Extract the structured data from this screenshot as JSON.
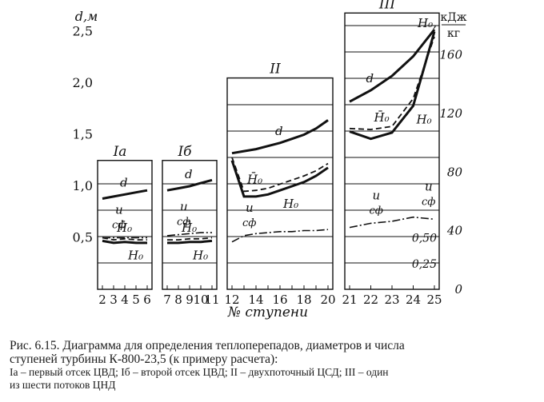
{
  "chart_data": {
    "type": "line",
    "left_axis": {
      "label": "d,м",
      "ticks": [
        {
          "v": 0.5,
          "label": "0,5"
        },
        {
          "v": 1.0,
          "label": "1,0"
        },
        {
          "v": 1.5,
          "label": "1,5"
        },
        {
          "v": 2.0,
          "label": "2,0"
        },
        {
          "v": 2.5,
          "label": "2,5"
        }
      ],
      "ylim": [
        0,
        2.7
      ]
    },
    "right_axis": {
      "label_symbol": "H₀,",
      "label_unit_top": "кДж",
      "label_unit_bottom": "кг",
      "ticks": [
        {
          "v": 0,
          "label": "0"
        },
        {
          "v": 40,
          "label": "40"
        },
        {
          "v": 80,
          "label": "80"
        },
        {
          "v": 120,
          "label": "120"
        },
        {
          "v": 160,
          "label": "160"
        }
      ],
      "ylim": [
        0,
        190
      ]
    },
    "ratio_ticks": [
      {
        "v": 0.25,
        "label": "0,25"
      },
      {
        "v": 0.5,
        "label": "0,50"
      }
    ],
    "xlabel": "№ ступени",
    "panels": [
      {
        "name": "Iа",
        "stages": [
          "2",
          "3",
          "4",
          "5",
          "6"
        ],
        "top": 1.25,
        "d": [
          0.88,
          0.9,
          0.92,
          0.94,
          0.96
        ],
        "H0": [
          0.47,
          0.45,
          0.46,
          0.45,
          0.45
        ],
        "H0_bar": [
          0.5,
          0.48,
          0.49,
          0.48,
          0.48
        ],
        "u_cf": [
          0.5,
          0.5,
          0.5,
          0.5,
          0.5
        ],
        "labels": {
          "d": "d",
          "H0": "H₀",
          "H0_bar": "H̄₀",
          "u": "u",
          "cf": "cф"
        }
      },
      {
        "name": "Iб",
        "stages": [
          "7",
          "8",
          "9",
          "10",
          "11"
        ],
        "top": 1.25,
        "d": [
          0.96,
          0.98,
          1.0,
          1.03,
          1.06
        ],
        "H0": [
          0.45,
          0.45,
          0.46,
          0.46,
          0.47
        ],
        "H0_bar": [
          0.48,
          0.48,
          0.49,
          0.49,
          0.5
        ],
        "u_cf": [
          0.52,
          0.53,
          0.54,
          0.55,
          0.55
        ],
        "labels": {
          "d": "d",
          "H0": "H₀",
          "H0_bar": "H̄₀",
          "u": "u",
          "cf": "cф"
        }
      },
      {
        "name": "II",
        "stages": [
          "12",
          "13",
          "14",
          "15",
          "16",
          "17",
          "18",
          "19",
          "20"
        ],
        "tick_labels": [
          "12",
          "14",
          "16",
          "18",
          "20"
        ],
        "top": 2.05,
        "d": [
          1.32,
          1.34,
          1.36,
          1.39,
          1.42,
          1.46,
          1.5,
          1.56,
          1.64
        ],
        "H0": [
          1.25,
          0.9,
          0.9,
          0.92,
          0.96,
          1.0,
          1.04,
          1.1,
          1.18
        ],
        "H0_bar": [
          1.28,
          0.95,
          0.96,
          0.98,
          1.02,
          1.06,
          1.1,
          1.15,
          1.22
        ],
        "u_cf": [
          0.46,
          0.52,
          0.54,
          0.55,
          0.56,
          0.56,
          0.57,
          0.57,
          0.58
        ],
        "labels": {
          "d": "d",
          "H0": "H₀",
          "H0_bar": "H̄₀",
          "u": "u",
          "cf": "cф"
        }
      },
      {
        "name": "III",
        "stages": [
          "21",
          "22",
          "23",
          "24",
          "25"
        ],
        "top": 2.68,
        "d": [
          1.82,
          1.93,
          2.07,
          2.26,
          2.52
        ],
        "H0": [
          1.53,
          1.46,
          1.52,
          1.78,
          2.5
        ],
        "H0_bar": [
          1.56,
          1.55,
          1.58,
          1.85,
          2.45
        ],
        "u_cf": [
          0.6,
          0.64,
          0.66,
          0.7,
          0.68
        ],
        "labels": {
          "d": "d",
          "H0": "H₀",
          "H0_bar": "H̄₀",
          "u": "u",
          "cf": "cф",
          "u2": "u",
          "cf2": "cф"
        }
      }
    ]
  },
  "caption": {
    "line1": "Рис. 6.15. Диаграмма для определения теплоперепадов, диаметров и числа",
    "line2": "ступеней турбины К-800-23,5 (к примеру расчета):",
    "line3": "Iа – первый отсек ЦВД; Iб – второй отсек ЦВД; II – двухпоточный ЦСД; III – один",
    "line4": "из шести потоков ЦНД"
  }
}
